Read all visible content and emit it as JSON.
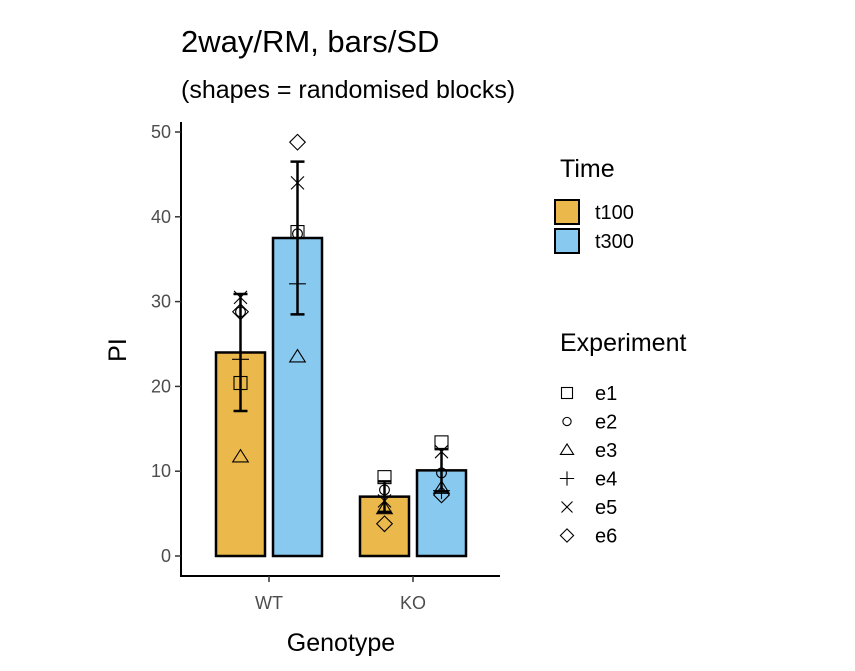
{
  "chart_data": {
    "type": "bar",
    "title": "2way/RM, bars/SD",
    "subtitle": "(shapes = randomised blocks)",
    "xlabel": "Genotype",
    "ylabel": "PI",
    "ylim": [
      0,
      50
    ],
    "yticks": [
      0,
      10,
      20,
      30,
      40,
      50
    ],
    "categories": [
      "WT",
      "KO"
    ],
    "grid": false,
    "legend_position": "right",
    "fill_legend": {
      "title": "Time"
    },
    "shape_legend": {
      "title": "Experiment"
    },
    "series": [
      {
        "name": "t100",
        "color": "#EBB94B",
        "values": [
          24.0,
          7.0
        ],
        "sd": [
          6.9,
          1.8
        ]
      },
      {
        "name": "t300",
        "color": "#88C9EF",
        "values": [
          37.5,
          10.1
        ],
        "sd": [
          9.0,
          2.5
        ]
      }
    ],
    "experiments": [
      {
        "name": "e1",
        "shape": "square",
        "t100": [
          20.4,
          9.3
        ],
        "t300": [
          38.2,
          13.4
        ]
      },
      {
        "name": "e2",
        "shape": "circle",
        "t100": [
          28.8,
          7.8
        ],
        "t300": [
          38.0,
          9.8
        ]
      },
      {
        "name": "e3",
        "shape": "triangle",
        "t100": [
          11.7,
          5.6
        ],
        "t300": [
          23.5,
          8.0
        ]
      },
      {
        "name": "e4",
        "shape": "plus",
        "t100": [
          23.2,
          7.0
        ],
        "t300": [
          32.1,
          7.7
        ]
      },
      {
        "name": "e5",
        "shape": "cross",
        "t100": [
          30.5,
          6.5
        ],
        "t300": [
          44.0,
          12.3
        ]
      },
      {
        "name": "e6",
        "shape": "diamond",
        "t100": [
          28.8,
          3.8
        ],
        "t300": [
          48.8,
          7.2
        ]
      }
    ]
  }
}
